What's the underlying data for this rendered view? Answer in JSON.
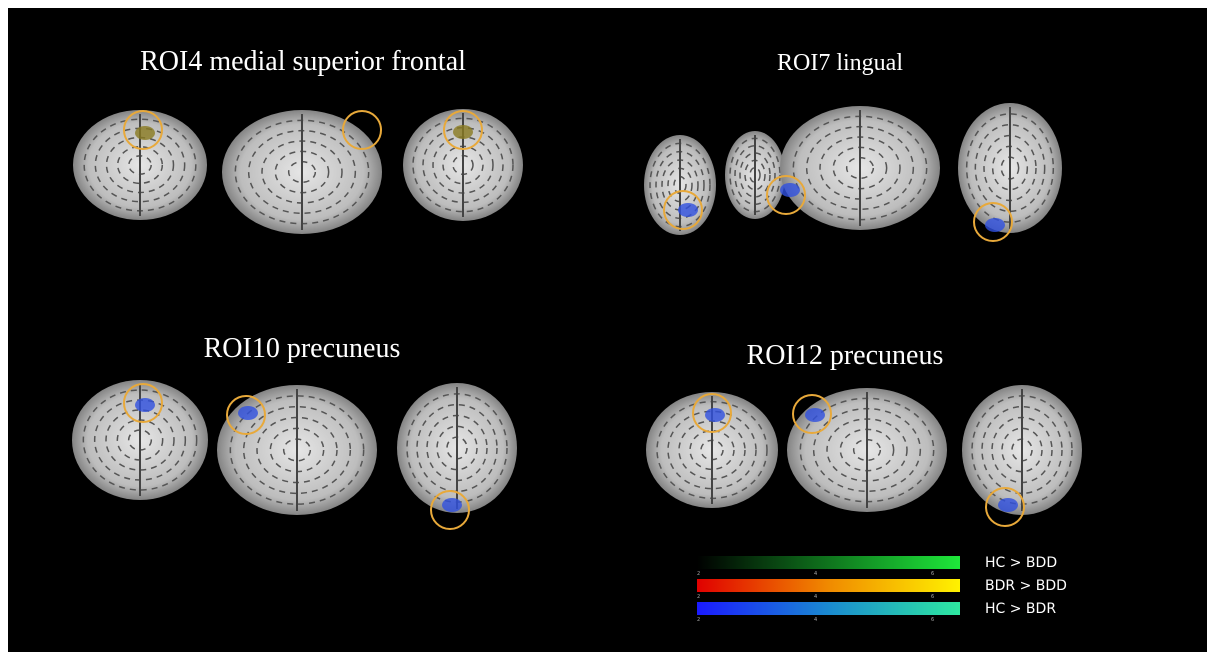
{
  "panels": [
    {
      "title": "ROI4 medial superior frontal"
    },
    {
      "title": "ROI7 lingual"
    },
    {
      "title": "ROI10 precuneus"
    },
    {
      "title": "ROI12 precuneus"
    }
  ],
  "legend": {
    "items": [
      {
        "label": "HC > BDD",
        "ticks": [
          "2",
          "4",
          "6"
        ]
      },
      {
        "label": "BDR > BDD",
        "ticks": [
          "2",
          "4",
          "6"
        ]
      },
      {
        "label": "HC > BDR",
        "ticks": [
          "2",
          "4",
          "6"
        ]
      }
    ]
  }
}
